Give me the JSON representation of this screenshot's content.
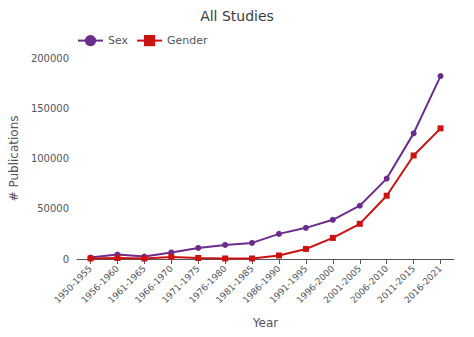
{
  "chart_data": {
    "type": "line",
    "title": "All Studies",
    "xlabel": "Year",
    "ylabel": "# Publications",
    "categories": [
      "1950-1955",
      "1956-1960",
      "1961-1965",
      "1966-1970",
      "1971-1975",
      "1976-1980",
      "1981-1985",
      "1986-1990",
      "1991-1995",
      "1996-2000",
      "2001-2005",
      "2006-2010",
      "2011-2015",
      "2016-2021"
    ],
    "series": [
      {
        "name": "Sex",
        "color": "#6B2D8B",
        "marker": "circle",
        "values": [
          1500,
          4500,
          2500,
          6500,
          11000,
          14000,
          16000,
          25000,
          31000,
          39000,
          53000,
          80000,
          125000,
          182000
        ]
      },
      {
        "name": "Gender",
        "color": "#CC1111",
        "marker": "square",
        "values": [
          500,
          1000,
          500,
          2000,
          1000,
          500,
          500,
          3500,
          10000,
          21000,
          35000,
          63000,
          103000,
          130000
        ]
      }
    ],
    "ylim": [
      0,
      200000
    ],
    "yticks": [
      0,
      50000,
      100000,
      150000,
      200000
    ],
    "grid": false,
    "legend": "upper left"
  }
}
